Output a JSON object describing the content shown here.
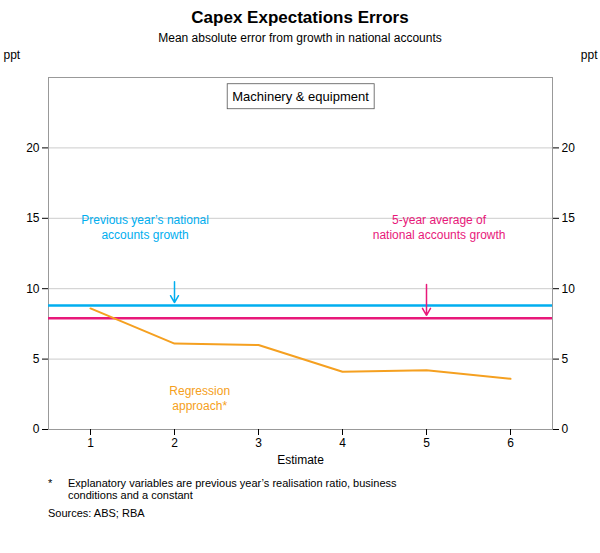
{
  "chart_data": {
    "type": "line",
    "title": "Capex Expectations Errors",
    "subtitle": "Mean absolute error from growth in national accounts",
    "panel_label": "Machinery & equipment",
    "xlabel": "Estimate",
    "ylabel": "ppt",
    "y2label": "ppt",
    "x": [
      1,
      2,
      3,
      4,
      5,
      6
    ],
    "series": [
      {
        "name": "Regression\napproach*",
        "color": "#F5A020",
        "values": [
          8.6,
          6.1,
          6.0,
          4.1,
          4.2,
          3.6
        ]
      }
    ],
    "reference_lines": [
      {
        "name": "Previous year’s national\naccounts growth",
        "color": "#00AEEF",
        "y": 8.8
      },
      {
        "name": "5-year average of\nnational accounts growth",
        "color": "#E8187A",
        "y": 7.9
      }
    ],
    "xlim": [
      0.5,
      6.5
    ],
    "xticks": [
      1,
      2,
      3,
      4,
      5,
      6
    ],
    "ylim": [
      0,
      25
    ],
    "yticks": [
      0,
      5,
      10,
      15,
      20
    ],
    "y2lim": [
      0,
      25
    ],
    "y2ticks": [
      0,
      5,
      10,
      15,
      20
    ],
    "grid": true,
    "footnote_marker": "*",
    "footnote": "Explanatory variables are previous year’s realisation ratio, business\nconditions and a constant",
    "source": "Sources: ABS; RBA"
  }
}
